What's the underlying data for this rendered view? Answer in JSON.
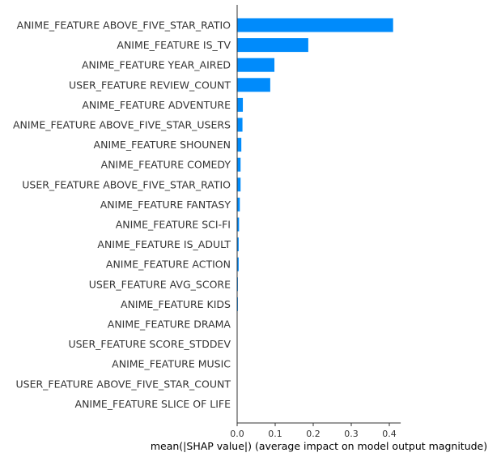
{
  "chart_data": {
    "type": "bar",
    "orientation": "horizontal",
    "categories": [
      "ANIME_FEATURE ABOVE_FIVE_STAR_RATIO",
      "ANIME_FEATURE IS_TV",
      "ANIME_FEATURE YEAR_AIRED",
      "USER_FEATURE REVIEW_COUNT",
      "ANIME_FEATURE ADVENTURE",
      "ANIME_FEATURE ABOVE_FIVE_STAR_USERS",
      "ANIME_FEATURE SHOUNEN",
      "ANIME_FEATURE COMEDY",
      "USER_FEATURE ABOVE_FIVE_STAR_RATIO",
      "ANIME_FEATURE FANTASY",
      "ANIME_FEATURE SCI-FI",
      "ANIME_FEATURE IS_ADULT",
      "ANIME_FEATURE ACTION",
      "USER_FEATURE AVG_SCORE",
      "ANIME_FEATURE KIDS",
      "ANIME_FEATURE DRAMA",
      "USER_FEATURE SCORE_STDDEV",
      "ANIME_FEATURE MUSIC",
      "USER_FEATURE ABOVE_FIVE_STAR_COUNT",
      "ANIME_FEATURE SLICE OF LIFE"
    ],
    "values": [
      0.41,
      0.187,
      0.098,
      0.087,
      0.015,
      0.014,
      0.011,
      0.009,
      0.009,
      0.007,
      0.005,
      0.004,
      0.004,
      0.002,
      0.002,
      0.0007,
      0.0006,
      0.0005,
      0.0004,
      0.0003
    ],
    "xlim": [
      0,
      0.43
    ],
    "xticks": [
      "0.0",
      "0.1",
      "0.2",
      "0.3",
      "0.4"
    ],
    "xlabel": "mean(|SHAP value|) (average impact on model output magnitude)",
    "bar_color": "#008bfb",
    "grid": false,
    "legend": "none"
  }
}
